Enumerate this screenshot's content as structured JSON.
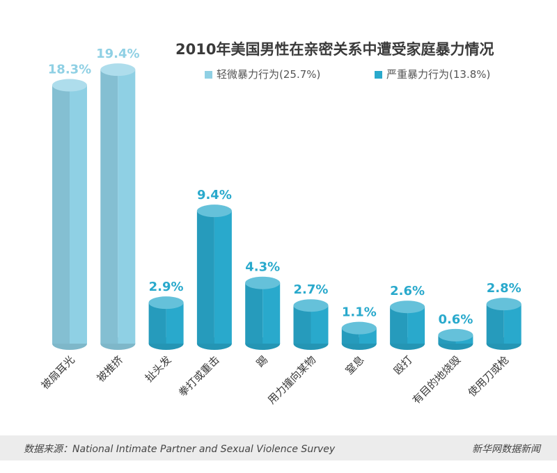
{
  "chart_data": {
    "type": "bar",
    "title": "2010年美国男性在亲密关系中遭受家庭暴力情况",
    "legend": [
      {
        "name": "轻微暴力行为(25.7%)",
        "color": "#8fd0e4"
      },
      {
        "name": "严重暴力行为(13.8%)",
        "color": "#29a9cc"
      }
    ],
    "categories": [
      "被扇耳光",
      "被推挤",
      "扯头发",
      "拳打或重击",
      "踢",
      "用力撞向某物",
      "窒息",
      "殴打",
      "有目的地烧毁",
      "使用刀或枪"
    ],
    "values": [
      18.3,
      19.4,
      2.9,
      9.4,
      4.3,
      2.7,
      1.1,
      2.6,
      0.6,
      2.8
    ],
    "labels": [
      "18.3%",
      "19.4%",
      "2.9%",
      "9.4%",
      "4.3%",
      "2.7%",
      "1.1%",
      "2.6%",
      "0.6%",
      "2.8%"
    ],
    "group": [
      "light",
      "light",
      "severe",
      "severe",
      "severe",
      "severe",
      "severe",
      "severe",
      "severe",
      "severe"
    ],
    "colors": {
      "light": "#8fd0e4",
      "severe": "#29a9cc"
    },
    "xlabel": "",
    "ylabel": "",
    "ylim": [
      0,
      20
    ]
  },
  "footer": {
    "source": "数据来源：National Intimate Partner and Sexual Violence Survey",
    "brand": "新华网数据新闻"
  }
}
